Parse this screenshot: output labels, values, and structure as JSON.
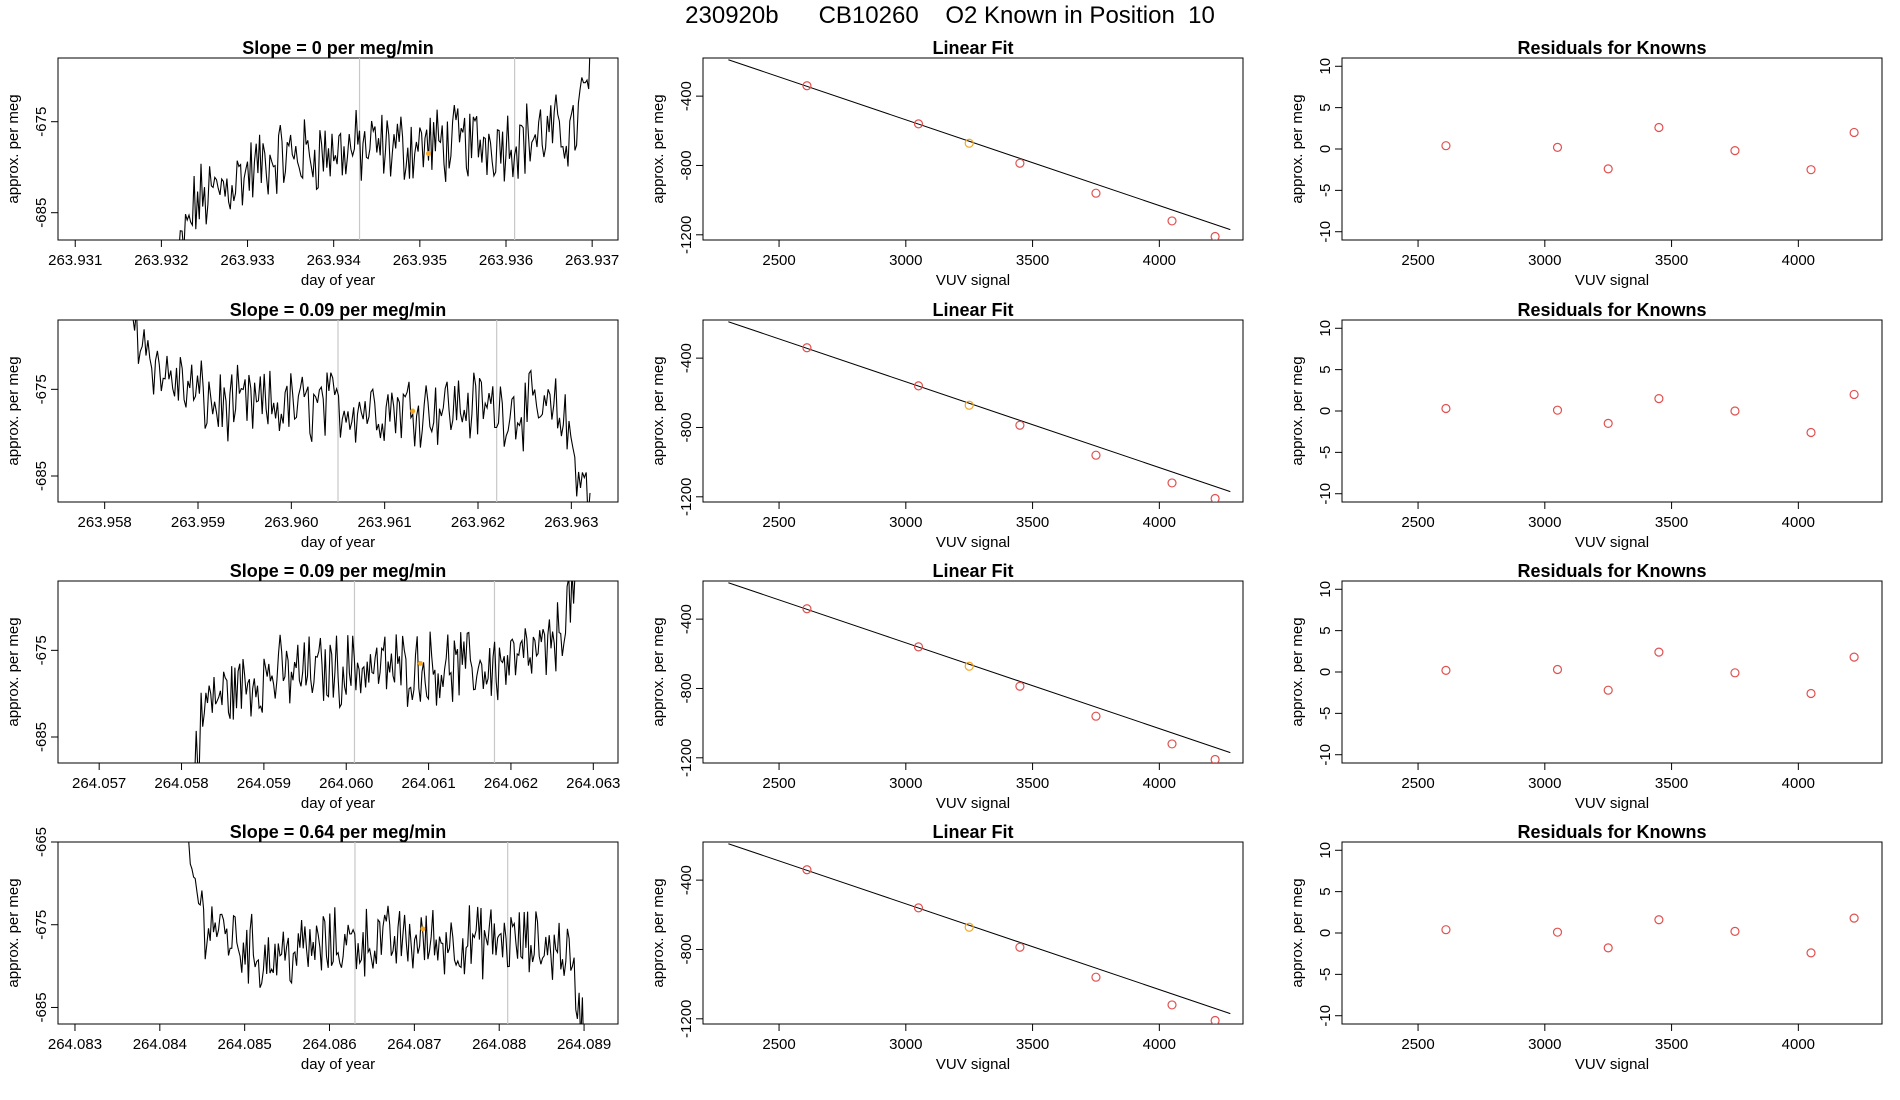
{
  "figure_title": "230920b      CB10260    O2 Known in Position  10",
  "colors": {
    "trace": "#000000",
    "point": "#e05050",
    "highlight": "#f5a623",
    "marker_line": "#c8c8c8"
  },
  "chart_data": [
    {
      "type": "line",
      "title": "Slope =  0  per meg/min",
      "xlabel": "day of year",
      "ylabel": "approx. per meg",
      "xlim": [
        263.9308,
        263.9373
      ],
      "ylim": [
        -688,
        -668
      ],
      "xticks": [
        "263.931",
        "263.932",
        "263.933",
        "263.934",
        "263.935",
        "263.936",
        "263.937"
      ],
      "xtick_values": [
        263.931,
        263.932,
        263.933,
        263.934,
        263.935,
        263.936,
        263.937
      ],
      "yticks": [
        "-675",
        "-685"
      ],
      "ytick_values": [
        -675,
        -685
      ],
      "start_x": 263.9322,
      "end_x": 263.937,
      "markers_x": [
        263.9343,
        263.9361
      ],
      "highlight": {
        "x": 263.9351,
        "y": -678.5
      },
      "segments": [
        {
          "x": 263.9322,
          "y": -690
        },
        {
          "x": 263.9324,
          "y": -684
        },
        {
          "x": 263.9333,
          "y": -679
        },
        {
          "x": 263.9343,
          "y": -678
        },
        {
          "x": 263.9361,
          "y": -677
        },
        {
          "x": 263.9368,
          "y": -676
        },
        {
          "x": 263.937,
          "y": -668
        }
      ]
    },
    {
      "type": "line",
      "title": "Linear Fit",
      "xlabel": "VUV signal",
      "ylabel": "approx. per meg",
      "xlim": [
        2200,
        4330
      ],
      "ylim": [
        -1230,
        -180
      ],
      "xticks": [
        "2500",
        "3000",
        "3500",
        "4000"
      ],
      "xtick_values": [
        2500,
        3000,
        3500,
        4000
      ],
      "yticks": [
        "-400",
        "-800",
        "-1200"
      ],
      "ytick_values": [
        -400,
        -800,
        -1200
      ],
      "fit_line": {
        "x": [
          2300,
          4280
        ],
        "y": [
          -190,
          -1170
        ]
      },
      "points_x": [
        2610,
        3050,
        3250,
        3450,
        3750,
        4050,
        4220
      ],
      "points_y": [
        -340,
        -560,
        -672,
        -787,
        -960,
        -1120,
        -1210
      ],
      "highlight_index": 2
    },
    {
      "type": "scatter",
      "title": "Residuals for Knowns",
      "xlabel": "VUV signal",
      "ylabel": "approx. per meg",
      "xlim": [
        2200,
        4330
      ],
      "ylim": [
        -11,
        11
      ],
      "xticks": [
        "2500",
        "3000",
        "3500",
        "4000"
      ],
      "xtick_values": [
        2500,
        3000,
        3500,
        4000
      ],
      "yticks": [
        "-10",
        "-5",
        "0",
        "5",
        "10"
      ],
      "ytick_values": [
        -10,
        -5,
        0,
        5,
        10
      ],
      "points_x": [
        2610,
        3050,
        3250,
        3450,
        3750,
        4050,
        4220
      ],
      "points_y": [
        0.4,
        0.2,
        -2.4,
        2.6,
        -0.2,
        -2.5,
        2.0
      ]
    },
    {
      "type": "line",
      "title": "Slope =  0.09  per meg/min",
      "xlabel": "day of year",
      "ylabel": "approx. per meg",
      "xlim": [
        263.9575,
        263.9635
      ],
      "ylim": [
        -688,
        -667
      ],
      "xticks": [
        "263.958",
        "263.959",
        "263.960",
        "263.961",
        "263.962",
        "263.963"
      ],
      "xtick_values": [
        263.958,
        263.959,
        263.96,
        263.961,
        263.962,
        263.963
      ],
      "yticks": [
        "-675",
        "-685"
      ],
      "ytick_values": [
        -675,
        -685
      ],
      "start_x": 263.9583,
      "end_x": 263.9632,
      "markers_x": [
        263.9605,
        263.9622
      ],
      "highlight": {
        "x": 263.9613,
        "y": -677.5
      },
      "segments": [
        {
          "x": 263.9583,
          "y": -667
        },
        {
          "x": 263.9586,
          "y": -673
        },
        {
          "x": 263.9592,
          "y": -677
        },
        {
          "x": 263.9605,
          "y": -677
        },
        {
          "x": 263.9622,
          "y": -677
        },
        {
          "x": 263.9629,
          "y": -678
        },
        {
          "x": 263.9632,
          "y": -688
        }
      ]
    },
    {
      "type": "line",
      "title": "Linear Fit",
      "xlabel": "VUV signal",
      "ylabel": "approx. per meg",
      "xlim": [
        2200,
        4330
      ],
      "ylim": [
        -1230,
        -180
      ],
      "xticks": [
        "2500",
        "3000",
        "3500",
        "4000"
      ],
      "xtick_values": [
        2500,
        3000,
        3500,
        4000
      ],
      "yticks": [
        "-400",
        "-800",
        "-1200"
      ],
      "ytick_values": [
        -400,
        -800,
        -1200
      ],
      "fit_line": {
        "x": [
          2300,
          4280
        ],
        "y": [
          -190,
          -1170
        ]
      },
      "points_x": [
        2610,
        3050,
        3250,
        3450,
        3750,
        4050,
        4220
      ],
      "points_y": [
        -340,
        -560,
        -672,
        -787,
        -960,
        -1120,
        -1210
      ],
      "highlight_index": 2
    },
    {
      "type": "scatter",
      "title": "Residuals for Knowns",
      "xlabel": "VUV signal",
      "ylabel": "approx. per meg",
      "xlim": [
        2200,
        4330
      ],
      "ylim": [
        -11,
        11
      ],
      "xticks": [
        "2500",
        "3000",
        "3500",
        "4000"
      ],
      "xtick_values": [
        2500,
        3000,
        3500,
        4000
      ],
      "yticks": [
        "-10",
        "-5",
        "0",
        "5",
        "10"
      ],
      "ytick_values": [
        -10,
        -5,
        0,
        5,
        10
      ],
      "points_x": [
        2610,
        3050,
        3250,
        3450,
        3750,
        4050,
        4220
      ],
      "points_y": [
        0.3,
        0.1,
        -1.5,
        1.5,
        0.0,
        -2.6,
        2.0
      ]
    },
    {
      "type": "line",
      "title": "Slope =  0.09  per meg/min",
      "xlabel": "day of year",
      "ylabel": "approx. per meg",
      "xlim": [
        264.0565,
        264.0633
      ],
      "ylim": [
        -688,
        -667
      ],
      "xticks": [
        "264.057",
        "264.058",
        "264.059",
        "264.060",
        "264.061",
        "264.062",
        "264.063"
      ],
      "xtick_values": [
        264.057,
        264.058,
        264.059,
        264.06,
        264.061,
        264.062,
        264.063
      ],
      "yticks": [
        "-675",
        "-685"
      ],
      "ytick_values": [
        -675,
        -685
      ],
      "start_x": 264.0581,
      "end_x": 264.0628,
      "markers_x": [
        264.0601,
        264.0618
      ],
      "highlight": {
        "x": 264.0609,
        "y": -676.5
      },
      "segments": [
        {
          "x": 264.0581,
          "y": -690
        },
        {
          "x": 264.0583,
          "y": -681
        },
        {
          "x": 264.059,
          "y": -678
        },
        {
          "x": 264.0601,
          "y": -677
        },
        {
          "x": 264.0618,
          "y": -677
        },
        {
          "x": 264.0625,
          "y": -675
        },
        {
          "x": 264.0628,
          "y": -667
        }
      ]
    },
    {
      "type": "line",
      "title": "Linear Fit",
      "xlabel": "VUV signal",
      "ylabel": "approx. per meg",
      "xlim": [
        2200,
        4330
      ],
      "ylim": [
        -1230,
        -180
      ],
      "xticks": [
        "2500",
        "3000",
        "3500",
        "4000"
      ],
      "xtick_values": [
        2500,
        3000,
        3500,
        4000
      ],
      "yticks": [
        "-400",
        "-800",
        "-1200"
      ],
      "ytick_values": [
        -400,
        -800,
        -1200
      ],
      "fit_line": {
        "x": [
          2300,
          4280
        ],
        "y": [
          -190,
          -1170
        ]
      },
      "points_x": [
        2610,
        3050,
        3250,
        3450,
        3750,
        4050,
        4220
      ],
      "points_y": [
        -340,
        -560,
        -672,
        -787,
        -960,
        -1120,
        -1210
      ],
      "highlight_index": 2
    },
    {
      "type": "scatter",
      "title": "Residuals for Knowns",
      "xlabel": "VUV signal",
      "ylabel": "approx. per meg",
      "xlim": [
        2200,
        4330
      ],
      "ylim": [
        -11,
        11
      ],
      "xticks": [
        "2500",
        "3000",
        "3500",
        "4000"
      ],
      "xtick_values": [
        2500,
        3000,
        3500,
        4000
      ],
      "yticks": [
        "-10",
        "-5",
        "0",
        "5",
        "10"
      ],
      "ytick_values": [
        -10,
        -5,
        0,
        5,
        10
      ],
      "points_x": [
        2610,
        3050,
        3250,
        3450,
        3750,
        4050,
        4220
      ],
      "points_y": [
        0.2,
        0.3,
        -2.2,
        2.4,
        -0.1,
        -2.6,
        1.8
      ]
    },
    {
      "type": "line",
      "title": "Slope =  0.64  per meg/min",
      "xlabel": "day of year",
      "ylabel": "approx. per meg",
      "xlim": [
        264.0828,
        264.0894
      ],
      "ylim": [
        -687,
        -665
      ],
      "xticks": [
        "264.083",
        "264.084",
        "264.085",
        "264.086",
        "264.087",
        "264.088",
        "264.089"
      ],
      "xtick_values": [
        264.083,
        264.084,
        264.085,
        264.086,
        264.087,
        264.088,
        264.089
      ],
      "yticks": [
        "-665",
        "-675",
        "-685"
      ],
      "ytick_values": [
        -665,
        -675,
        -685
      ],
      "start_x": 264.0843,
      "end_x": 264.089,
      "markers_x": [
        264.0863,
        264.0881
      ],
      "highlight": {
        "x": 264.0871,
        "y": -675.5
      },
      "segments": [
        {
          "x": 264.0843,
          "y": -665
        },
        {
          "x": 264.0845,
          "y": -674
        },
        {
          "x": 264.0852,
          "y": -679
        },
        {
          "x": 264.0863,
          "y": -677
        },
        {
          "x": 264.0881,
          "y": -677
        },
        {
          "x": 264.0888,
          "y": -678
        },
        {
          "x": 264.089,
          "y": -688
        }
      ]
    },
    {
      "type": "line",
      "title": "Linear Fit",
      "xlabel": "VUV signal",
      "ylabel": "approx. per meg",
      "xlim": [
        2200,
        4330
      ],
      "ylim": [
        -1230,
        -180
      ],
      "xticks": [
        "2500",
        "3000",
        "3500",
        "4000"
      ],
      "xtick_values": [
        2500,
        3000,
        3500,
        4000
      ],
      "yticks": [
        "-400",
        "-800",
        "-1200"
      ],
      "ytick_values": [
        -400,
        -800,
        -1200
      ],
      "fit_line": {
        "x": [
          2300,
          4280
        ],
        "y": [
          -190,
          -1170
        ]
      },
      "points_x": [
        2610,
        3050,
        3250,
        3450,
        3750,
        4050,
        4220
      ],
      "points_y": [
        -340,
        -560,
        -672,
        -787,
        -960,
        -1120,
        -1210
      ],
      "highlight_index": 2
    },
    {
      "type": "scatter",
      "title": "Residuals for Knowns",
      "xlabel": "VUV signal",
      "ylabel": "approx. per meg",
      "xlim": [
        2200,
        4330
      ],
      "ylim": [
        -11,
        11
      ],
      "xticks": [
        "2500",
        "3000",
        "3500",
        "4000"
      ],
      "xtick_values": [
        2500,
        3000,
        3500,
        4000
      ],
      "yticks": [
        "-10",
        "-5",
        "0",
        "5",
        "10"
      ],
      "ytick_values": [
        -10,
        -5,
        0,
        5,
        10
      ],
      "points_x": [
        2610,
        3050,
        3250,
        3450,
        3750,
        4050,
        4220
      ],
      "points_y": [
        0.4,
        0.1,
        -1.8,
        1.6,
        0.2,
        -2.4,
        1.8
      ]
    }
  ]
}
